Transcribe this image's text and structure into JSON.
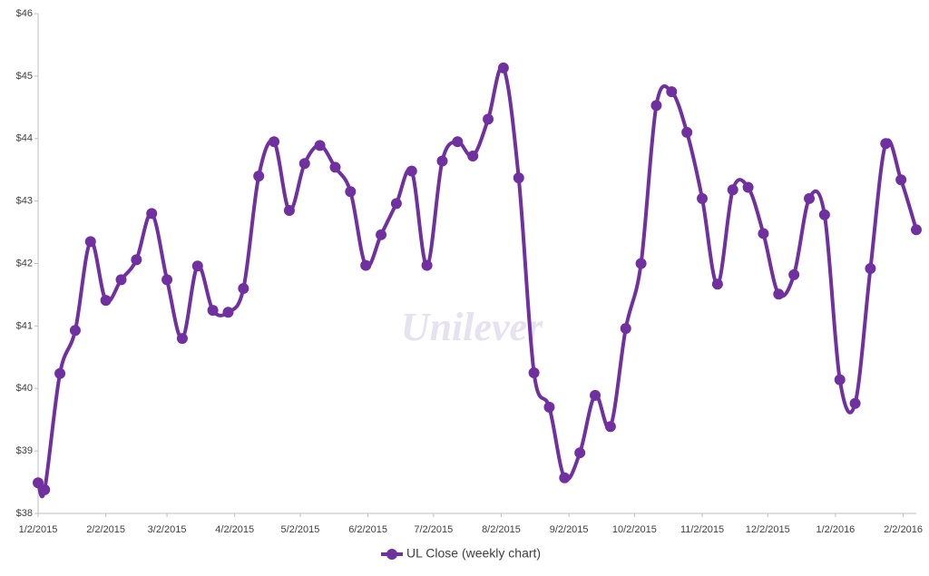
{
  "chart_data": {
    "type": "line",
    "watermark": "Unilever",
    "x": [
      "1/2/2015",
      "1/5/2015",
      "1/12/2015",
      "1/19/2015",
      "1/26/2015",
      "2/2/2015",
      "2/9/2015",
      "2/16/2015",
      "2/23/2015",
      "3/2/2015",
      "3/9/2015",
      "3/16/2015",
      "3/23/2015",
      "3/30/2015",
      "4/6/2015",
      "4/13/2015",
      "4/20/2015",
      "4/27/2015",
      "5/4/2015",
      "5/11/2015",
      "5/18/2015",
      "5/25/2015",
      "6/1/2015",
      "6/8/2015",
      "6/15/2015",
      "6/22/2015",
      "6/29/2015",
      "7/6/2015",
      "7/13/2015",
      "7/20/2015",
      "7/27/2015",
      "8/3/2015",
      "8/10/2015",
      "8/17/2015",
      "8/24/2015",
      "8/31/2015",
      "9/7/2015",
      "9/14/2015",
      "9/21/2015",
      "9/28/2015",
      "10/5/2015",
      "10/12/2015",
      "10/19/2015",
      "10/26/2015",
      "11/2/2015",
      "11/9/2015",
      "11/16/2015",
      "11/23/2015",
      "11/30/2015",
      "12/7/2015",
      "12/14/2015",
      "12/21/2015",
      "12/28/2015",
      "1/4/2016",
      "1/11/2016",
      "1/18/2016",
      "1/25/2016",
      "2/1/2016",
      "2/8/2016"
    ],
    "series": [
      {
        "name": "UL Close (weekly chart)",
        "color": "#7030a0",
        "values": [
          38.49,
          38.38,
          40.24,
          40.93,
          42.35,
          41.41,
          41.74,
          42.06,
          42.8,
          41.74,
          40.8,
          41.96,
          41.25,
          41.22,
          41.6,
          43.4,
          43.95,
          42.85,
          43.6,
          43.89,
          43.54,
          43.15,
          41.97,
          42.46,
          42.96,
          43.48,
          41.97,
          43.64,
          43.95,
          43.72,
          44.31,
          45.13,
          43.37,
          40.25,
          39.7,
          38.57,
          38.97,
          39.89,
          39.39,
          40.96,
          42.0,
          44.53,
          44.75,
          44.1,
          43.04,
          41.67,
          43.18,
          43.22,
          42.48,
          41.51,
          41.82,
          43.04,
          42.78,
          40.14,
          39.76,
          41.92,
          43.92,
          43.34,
          42.54
        ]
      }
    ],
    "xlim": [
      "1/2/2015",
      "2/8/2016"
    ],
    "xticks": [
      "1/2/2015",
      "2/2/2015",
      "3/2/2015",
      "4/2/2015",
      "5/2/2015",
      "6/2/2015",
      "7/2/2015",
      "8/2/2015",
      "9/2/2015",
      "10/2/2015",
      "11/2/2015",
      "12/2/2015",
      "1/2/2016",
      "2/2/2016"
    ],
    "ylim": [
      38,
      46
    ],
    "yticks": [
      {
        "value": 38,
        "label": "$38"
      },
      {
        "value": 39,
        "label": "$39"
      },
      {
        "value": 40,
        "label": "$40"
      },
      {
        "value": 41,
        "label": "$41"
      },
      {
        "value": 42,
        "label": "$42"
      },
      {
        "value": 43,
        "label": "$43"
      },
      {
        "value": 44,
        "label": "$44"
      },
      {
        "value": 45,
        "label": "$45"
      },
      {
        "value": 46,
        "label": "$46"
      }
    ],
    "grid": false,
    "legend": "bottom"
  }
}
